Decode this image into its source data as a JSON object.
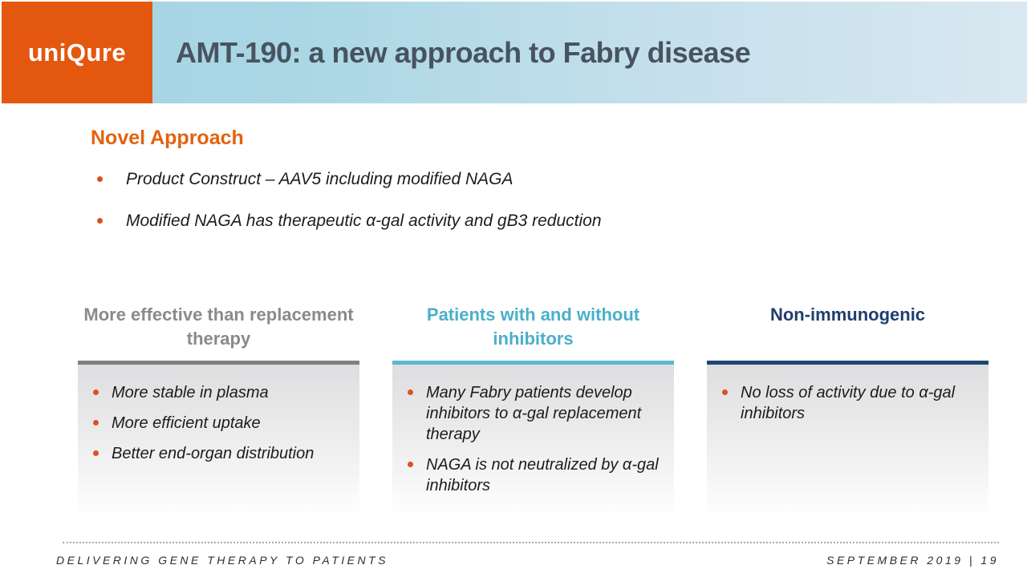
{
  "header": {
    "logo_text": "uniQure",
    "title": "AMT-190: a new approach to Fabry disease"
  },
  "section": {
    "heading": "Novel Approach",
    "bullets": [
      "Product Construct – AAV5 including modified NAGA",
      "Modified NAGA has therapeutic α-gal activity and gB3 reduction"
    ]
  },
  "columns": [
    {
      "header": "More effective than replacement therapy",
      "header_color": "#8a8a8a",
      "accent": "#7f7f7f",
      "bullets": [
        "More stable in plasma",
        "More efficient uptake",
        "Better end-organ distribution"
      ]
    },
    {
      "header": "Patients with and without inhibitors",
      "header_color": "#4bafcb",
      "accent": "#5bb8ce",
      "bullets": [
        "Many Fabry patients develop inhibitors to α-gal replacement therapy",
        "NAGA is not neutralized by α-gal inhibitors"
      ]
    },
    {
      "header": "Non-immunogenic",
      "header_color": "#1f3e6e",
      "accent": "#1f4775",
      "bullets": [
        "No loss of activity due to α-gal inhibitors"
      ]
    }
  ],
  "footer": {
    "left": "DELIVERING GENE THERAPY TO PATIENTS",
    "right": "SEPTEMBER 2019 | 19"
  },
  "colors": {
    "brand_orange": "#e4570f",
    "bullet_orange": "#d9531e",
    "title_text": "#47545f",
    "heading_orange": "#e3620f",
    "band_gradient_left": "#a2d3e2",
    "band_gradient_right": "#d9e8f1",
    "box_gradient_top": "#dedee0",
    "footer_text": "#2e2e2e"
  }
}
